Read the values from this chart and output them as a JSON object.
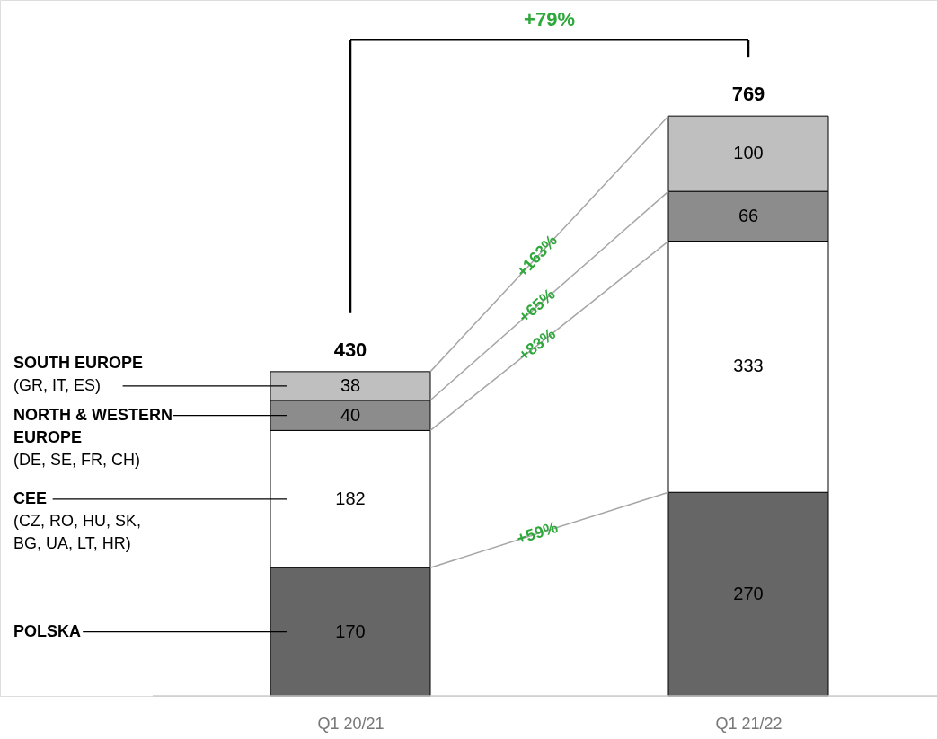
{
  "chart_data": {
    "type": "bar",
    "stacked": true,
    "categories": [
      "Q1 20/21",
      "Q1 21/22"
    ],
    "series": [
      {
        "name": "POLSKA",
        "color": "#666666",
        "values": [
          170,
          270
        ]
      },
      {
        "name": "CEE (CZ, RO, HU, SK, BG, UA, LT, HR)",
        "color": "#ffffff",
        "values": [
          182,
          333
        ]
      },
      {
        "name": "NORTH & WESTERN EUROPE (DE, SE, FR, CH)",
        "color": "#8c8c8c",
        "values": [
          40,
          66
        ]
      },
      {
        "name": "SOUTH EUROPE (GR, IT, ES)",
        "color": "#bfbfbf",
        "values": [
          38,
          100
        ]
      }
    ],
    "data_labels": true,
    "totals": [
      "430",
      "769"
    ],
    "annotations": [
      "+79%",
      "+59%",
      "+83%",
      "+65%",
      "+163%"
    ]
  }
}
